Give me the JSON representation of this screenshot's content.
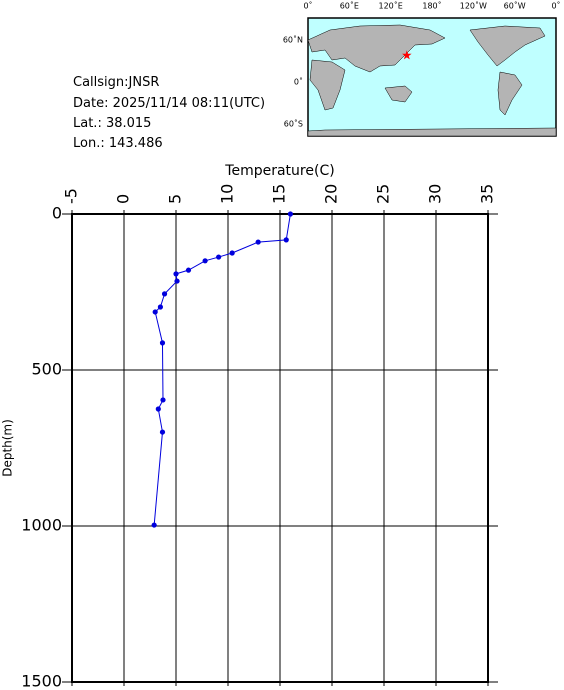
{
  "info": {
    "callsign": "Callsign:JNSR",
    "date": "Date:  2025/11/14 08:11(UTC)",
    "lat": "Lat.:  38.015",
    "lon": "Lon.:  143.486",
    "station_lat": 38.015,
    "station_lon": 143.486
  },
  "map": {
    "lon_labels": [
      "0˚",
      "60˚E",
      "120˚E",
      "180˚",
      "120˚W",
      "60˚W",
      "0˚"
    ],
    "lat_labels": [
      "60˚N",
      "0˚",
      "60˚S"
    ]
  },
  "chart_data": {
    "type": "line",
    "x_label": "Temperature(C)",
    "y_label": "Depth(m)",
    "series": [
      {
        "name": "Temperature",
        "color": "#0000dd",
        "x": [
          16.0,
          15.6,
          12.9,
          10.4,
          9.1,
          7.8,
          6.2,
          5.0,
          5.1,
          3.9,
          3.5,
          3.0,
          3.7,
          3.75,
          3.3,
          3.7,
          2.9
        ],
        "values": [
          0,
          83,
          90,
          125,
          138,
          150,
          180,
          192,
          215,
          256,
          298,
          314,
          413,
          596,
          625,
          699,
          997
        ]
      }
    ],
    "xlim": [
      -5,
      35
    ],
    "xticks": [
      -5,
      0,
      5,
      10,
      15,
      20,
      25,
      30,
      35
    ],
    "ylim": [
      0,
      1500
    ],
    "yticks": [
      0,
      500,
      1000,
      1500
    ],
    "y_reversed": true,
    "grid": true
  }
}
